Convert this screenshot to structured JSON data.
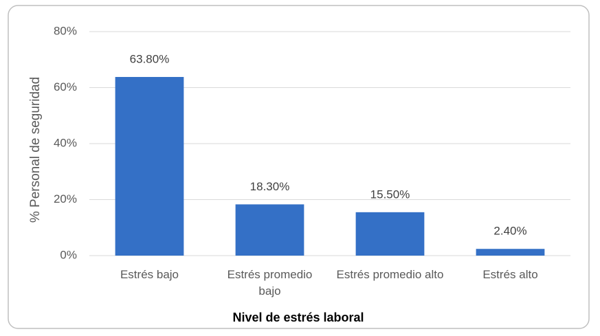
{
  "chart_data": {
    "type": "bar",
    "x_label": "Nivel de estrés laboral",
    "y_label": "% Personal de seguridad",
    "categories": [
      "Estrés bajo",
      "Estrés promedio bajo",
      "Estrés promedio alto",
      "Estrés alto"
    ],
    "values": [
      63.8,
      18.3,
      15.5,
      2.4
    ],
    "value_labels": [
      "63.80%",
      "18.30%",
      "15.50%",
      "2.40%"
    ],
    "color": "#3470c6",
    "ylim": [
      0,
      80
    ],
    "yticks": [
      {
        "value": 0,
        "label": "0%"
      },
      {
        "value": 20,
        "label": "20%"
      },
      {
        "value": 40,
        "label": "40%"
      },
      {
        "value": 60,
        "label": "60%"
      },
      {
        "value": 80,
        "label": "80%"
      }
    ],
    "grid": true
  }
}
